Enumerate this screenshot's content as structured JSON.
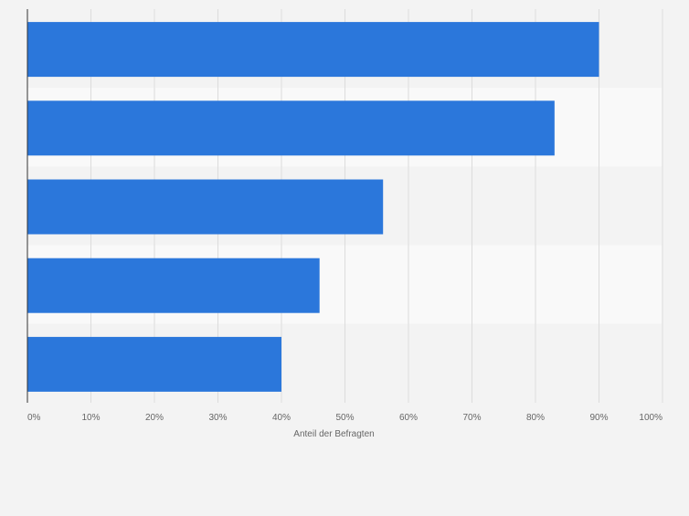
{
  "chart_data": {
    "type": "bar",
    "orientation": "horizontal",
    "categories": [
      "",
      "",
      "",
      "",
      ""
    ],
    "values": [
      90,
      83,
      56,
      46,
      40
    ],
    "xlabel": "Anteil der Befragten",
    "ylabel": "",
    "xlim": [
      0,
      100
    ],
    "xticks": [
      0,
      10,
      20,
      30,
      40,
      50,
      60,
      70,
      80,
      90,
      100
    ],
    "xtick_labels": [
      "0%",
      "10%",
      "20%",
      "30%",
      "40%",
      "50%",
      "60%",
      "70%",
      "80%",
      "90%",
      "100%"
    ],
    "grid": true,
    "legend": "none"
  },
  "colors": {
    "bar": "#2b77db",
    "band_dark": "#f3f3f3",
    "band_light": "#f9f9f9",
    "grid": "#dcdcdc",
    "axis": "#333333",
    "tick_text": "#666666"
  }
}
